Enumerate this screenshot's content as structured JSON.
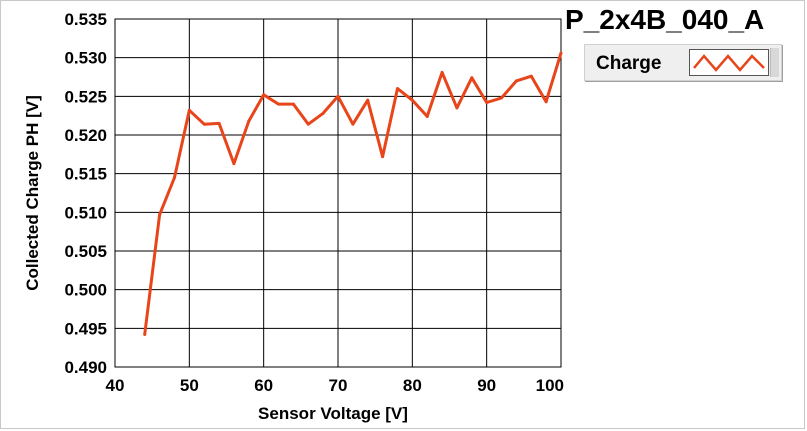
{
  "title": "P_2x4B_040_A",
  "legend": {
    "label": "Charge"
  },
  "colors": {
    "series": "#e8451a",
    "grid": "#000000",
    "plot_bg": "#ffffff"
  },
  "chart_data": {
    "type": "line",
    "title": "P_2x4B_040_A",
    "xlabel": "Sensor Voltage [V]",
    "ylabel": "Collected Charge PH [V]",
    "xlim": [
      40,
      100
    ],
    "ylim": [
      0.49,
      0.535
    ],
    "x_ticks": [
      40,
      50,
      60,
      70,
      80,
      90,
      100
    ],
    "y_ticks": [
      0.49,
      0.495,
      0.5,
      0.505,
      0.51,
      0.515,
      0.52,
      0.525,
      0.53,
      0.535
    ],
    "grid": true,
    "legend_position": "top-right",
    "series": [
      {
        "name": "Charge",
        "x": [
          44,
          46,
          48,
          50,
          52,
          54,
          56,
          58,
          60,
          62,
          64,
          66,
          68,
          70,
          72,
          74,
          76,
          78,
          80,
          82,
          84,
          86,
          88,
          90,
          92,
          94,
          96,
          98,
          100
        ],
        "y": [
          0.4942,
          0.5097,
          0.5145,
          0.5232,
          0.5214,
          0.5215,
          0.5163,
          0.5218,
          0.5252,
          0.524,
          0.524,
          0.5214,
          0.5228,
          0.525,
          0.5214,
          0.5245,
          0.5172,
          0.526,
          0.5245,
          0.5224,
          0.5281,
          0.5235,
          0.5274,
          0.5242,
          0.5248,
          0.527,
          0.5276,
          0.5243,
          0.5306
        ]
      }
    ]
  }
}
